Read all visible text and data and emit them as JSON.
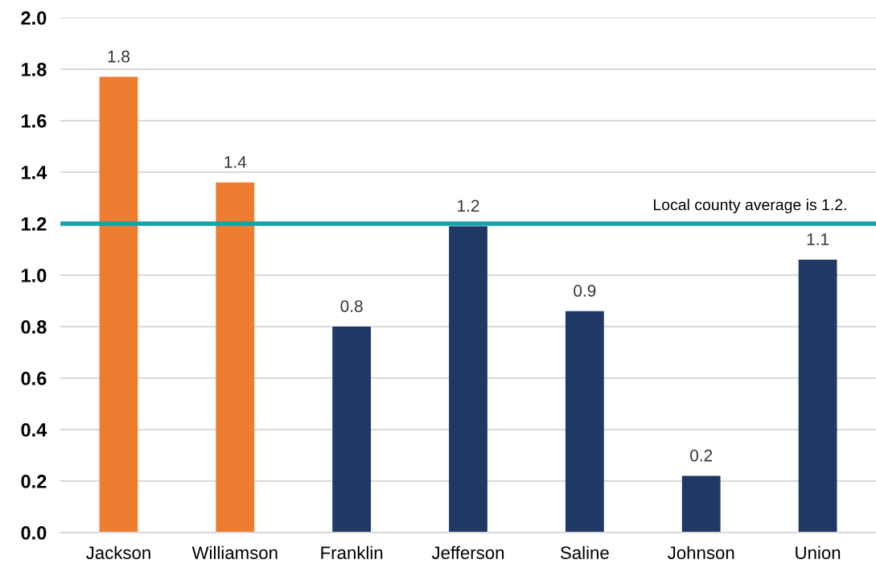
{
  "chart_data": {
    "type": "bar",
    "categories": [
      "Jackson",
      "Williamson",
      "Franklin",
      "Jefferson",
      "Saline",
      "Johnson",
      "Union"
    ],
    "values": [
      1.77,
      1.36,
      0.8,
      1.19,
      0.86,
      0.22,
      1.06
    ],
    "value_labels": [
      "1.8",
      "1.4",
      "0.8",
      "1.2",
      "0.9",
      "0.2",
      "1.1"
    ],
    "colors": [
      "#ed7d31",
      "#ed7d31",
      "#203864",
      "#203864",
      "#203864",
      "#203864",
      "#203864"
    ],
    "ylim": [
      0,
      2.0
    ],
    "yticks": [
      {
        "value": 0,
        "label": "0.0"
      },
      {
        "value": 0.2,
        "label": "0.2"
      },
      {
        "value": 0.4,
        "label": "0.4"
      },
      {
        "value": 0.6,
        "label": "0.6"
      },
      {
        "value": 0.8,
        "label": "0.8"
      },
      {
        "value": 1.0,
        "label": "1.0"
      },
      {
        "value": 1.2,
        "label": "1.2"
      },
      {
        "value": 1.4,
        "label": "1.4"
      },
      {
        "value": 1.6,
        "label": "1.6"
      },
      {
        "value": 1.8,
        "label": "1.8"
      },
      {
        "value": 2.0,
        "label": "2.0"
      }
    ],
    "grid": "y",
    "ref_lines": [
      {
        "axis": "y",
        "value": 1.2,
        "label": "Local county average is 1.2.",
        "color": "#17a2a8"
      }
    ]
  }
}
